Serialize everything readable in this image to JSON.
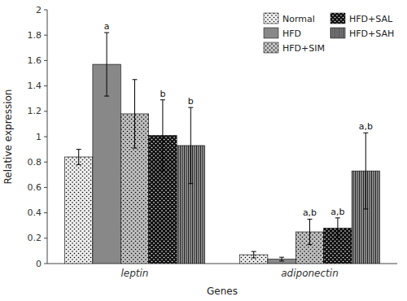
{
  "chart_data": {
    "type": "bar",
    "categories": [
      "leptin",
      "adiponectin"
    ],
    "series": [
      {
        "name": "Normal",
        "color": "#f0f0f0",
        "values": [
          0.84,
          0.07
        ],
        "errors": [
          0.06,
          0.025
        ],
        "annotations": [
          null,
          null
        ]
      },
      {
        "name": "HFD",
        "color": "#888888",
        "values": [
          1.57,
          0.035
        ],
        "errors": [
          0.25,
          0.015
        ],
        "annotations": [
          "a",
          null
        ]
      },
      {
        "name": "HFD+SIM",
        "color": "#c0c0c0",
        "values": [
          1.18,
          0.25
        ],
        "errors": [
          0.27,
          0.1
        ],
        "annotations": [
          null,
          "a,b"
        ]
      },
      {
        "name": "HFD+SAL",
        "color": "#111111",
        "values": [
          1.01,
          0.28
        ],
        "errors": [
          0.28,
          0.08
        ],
        "annotations": [
          "b",
          "a,b"
        ]
      },
      {
        "name": "HFD+SAH",
        "color": "#999999",
        "values": [
          0.93,
          0.73
        ],
        "errors": [
          0.3,
          0.3
        ],
        "annotations": [
          "b",
          "a,b"
        ]
      }
    ],
    "xlabel": "Genes",
    "ylabel": "Relative expression",
    "ylim": [
      0,
      2.0
    ],
    "yticks": [
      0,
      0.2,
      0.4,
      0.6,
      0.8,
      1,
      1.2,
      1.4,
      1.6,
      1.8,
      2
    ],
    "legend": "top-right",
    "grid": false
  }
}
